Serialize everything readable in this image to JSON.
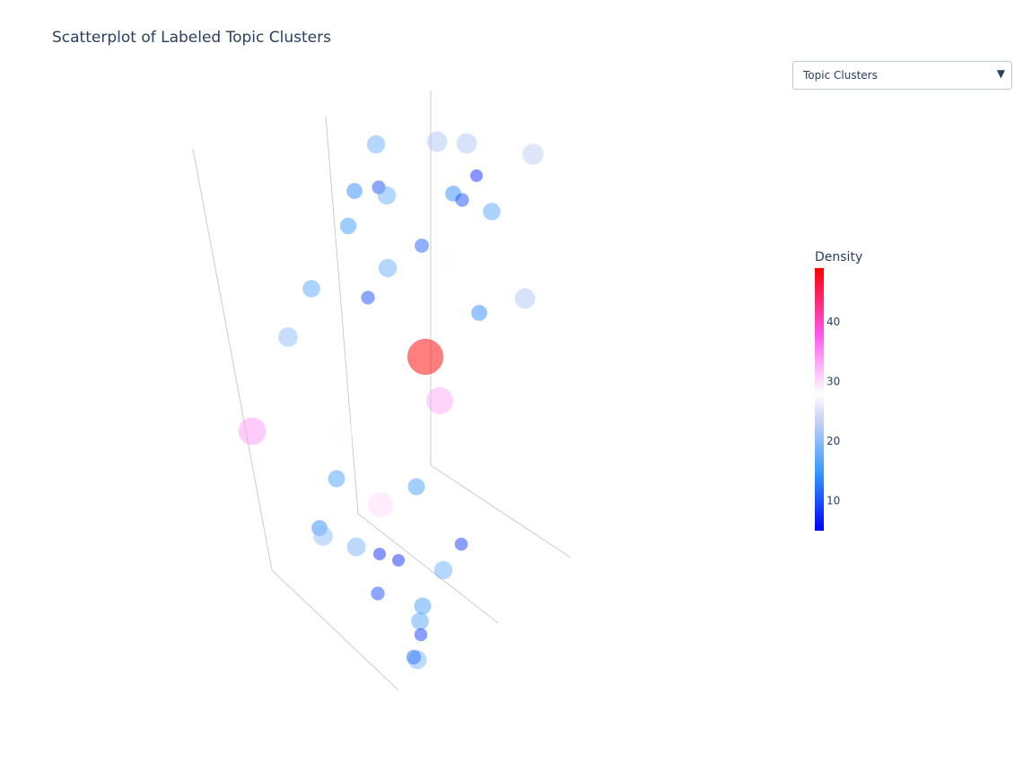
{
  "title": "Scatterplot of Labeled Topic Clusters",
  "dropdown": {
    "selected": "Topic Clusters"
  },
  "colors": {
    "text": "#2a3f5f",
    "axis": "#cccccc",
    "scale": [
      "#0000ff",
      "#3399ff",
      "#dddde8",
      "#ffffff",
      "#ff66ee",
      "#ff0000"
    ]
  },
  "chart_data": {
    "type": "scatter",
    "projection": "3d",
    "title": "Scatterplot of Labeled Topic Clusters",
    "colorbar": {
      "title": "Density",
      "range": [
        5,
        49
      ],
      "ticks": [
        10,
        20,
        30,
        40
      ]
    },
    "points": [
      {
        "density": 18,
        "view_x": 419,
        "view_y": 161
      },
      {
        "density": 22,
        "view_x": 487,
        "view_y": 158
      },
      {
        "density": 22,
        "view_x": 520,
        "view_y": 160
      },
      {
        "density": 23,
        "view_x": 594,
        "view_y": 172
      },
      {
        "density": 8,
        "view_x": 531,
        "view_y": 196
      },
      {
        "density": 14,
        "view_x": 395,
        "view_y": 213
      },
      {
        "density": 10,
        "view_x": 422,
        "view_y": 209
      },
      {
        "density": 18,
        "view_x": 431,
        "view_y": 218
      },
      {
        "density": 14,
        "view_x": 505,
        "view_y": 216
      },
      {
        "density": 10,
        "view_x": 515,
        "view_y": 223
      },
      {
        "density": 17,
        "view_x": 548,
        "view_y": 236
      },
      {
        "density": 15,
        "view_x": 388,
        "view_y": 252
      },
      {
        "density": 11,
        "view_x": 470,
        "view_y": 274
      },
      {
        "density": 28,
        "view_x": 496,
        "view_y": 288
      },
      {
        "density": 18,
        "view_x": 432,
        "view_y": 299
      },
      {
        "density": 17,
        "view_x": 347,
        "view_y": 322
      },
      {
        "density": 10,
        "view_x": 410,
        "view_y": 332
      },
      {
        "density": 14,
        "view_x": 534,
        "view_y": 349
      },
      {
        "density": 22,
        "view_x": 585,
        "view_y": 333
      },
      {
        "density": 20,
        "view_x": 321,
        "view_y": 376
      },
      {
        "density": 49,
        "view_x": 474,
        "view_y": 398
      },
      {
        "density": 33,
        "view_x": 490,
        "view_y": 447
      },
      {
        "density": 34,
        "view_x": 281,
        "view_y": 481
      },
      {
        "density": 28,
        "view_x": 380,
        "view_y": 481
      },
      {
        "density": 16,
        "view_x": 375,
        "view_y": 534
      },
      {
        "density": 16,
        "view_x": 464,
        "view_y": 543
      },
      {
        "density": 30,
        "view_x": 424,
        "view_y": 563
      },
      {
        "density": 14,
        "view_x": 356,
        "view_y": 589
      },
      {
        "density": 20,
        "view_x": 360,
        "view_y": 598
      },
      {
        "density": 19,
        "view_x": 397,
        "view_y": 610
      },
      {
        "density": 8,
        "view_x": 423,
        "view_y": 618
      },
      {
        "density": 8,
        "view_x": 444,
        "view_y": 625
      },
      {
        "density": 9,
        "view_x": 514,
        "view_y": 607
      },
      {
        "density": 18,
        "view_x": 494,
        "view_y": 636
      },
      {
        "density": 10,
        "view_x": 421,
        "view_y": 662
      },
      {
        "density": 16,
        "view_x": 471,
        "view_y": 676
      },
      {
        "density": 17,
        "view_x": 468,
        "view_y": 693
      },
      {
        "density": 9,
        "view_x": 469,
        "view_y": 708
      },
      {
        "density": 19,
        "view_x": 465,
        "view_y": 736
      },
      {
        "density": 12,
        "view_x": 461,
        "view_y": 733
      }
    ]
  }
}
